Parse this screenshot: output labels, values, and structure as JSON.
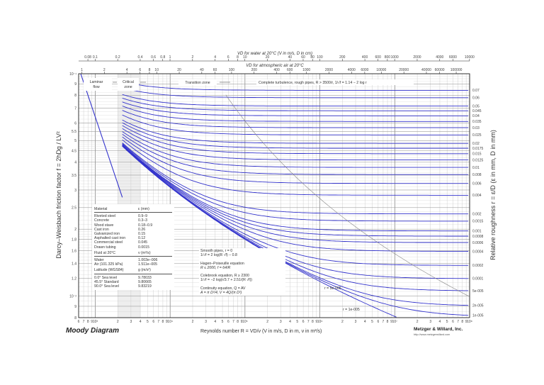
{
  "chart_data": {
    "type": "line",
    "title": "Moody Diagram",
    "xlabel": "Reynolds number R = VD/ν (V in m/s, D in m, ν in m²/s)",
    "ylabel": "Darcy-Weisbach friction factor f = 2hDg / LV²",
    "y2label": "Relative roughness r = ε/D (ε in mm, D in mm)",
    "x_scale": "log",
    "y_scale": "log",
    "xlim": [
      600,
      100000000
    ],
    "ylim": [
      0.008,
      0.1
    ],
    "grid": true,
    "x_tick_labels": [
      "6",
      "7",
      "8",
      "9",
      "10³",
      "2",
      "3",
      "4",
      "5",
      "6",
      "7",
      "8",
      "9",
      "10⁴",
      "2",
      "3",
      "4",
      "5",
      "6",
      "7",
      "8",
      "9",
      "10⁵",
      "2",
      "3",
      "4",
      "5",
      "6",
      "7",
      "8",
      "9",
      "10⁶",
      "2",
      "3",
      "4",
      "5",
      "6",
      "7",
      "8",
      "9",
      "10⁷",
      "2",
      "3",
      "4",
      "5",
      "6",
      "7",
      "8",
      "9",
      "10⁸"
    ],
    "y_tick_labels": [
      "10⁻¹",
      "9",
      "8",
      "7",
      "6",
      "5.5",
      "5",
      "4.5",
      "4",
      "3.5",
      "3",
      "2.5",
      "2",
      "1.8",
      "1.6",
      "1.4",
      "1.2",
      "10⁻²",
      "9",
      "8"
    ],
    "y_tick_values": [
      0.1,
      0.09,
      0.08,
      0.07,
      0.06,
      0.055,
      0.05,
      0.045,
      0.04,
      0.035,
      0.03,
      0.025,
      0.02,
      0.018,
      0.016,
      0.014,
      0.012,
      0.01,
      0.009,
      0.008
    ],
    "relative_roughness": [
      0.07,
      0.06,
      0.05,
      0.045,
      0.04,
      0.035,
      0.03,
      0.025,
      0.02,
      0.0175,
      0.015,
      0.0125,
      0.01,
      0.008,
      0.006,
      0.004,
      0.002,
      0.0015,
      0.001,
      0.0008,
      0.0006,
      0.0004,
      0.0002,
      0.0001,
      5e-05,
      2e-05,
      1e-05
    ],
    "relative_roughness_labels": [
      "0.07",
      "0.06",
      "0.05",
      "0.045",
      "0.04",
      "0.035",
      "0.03",
      "0.025",
      "0.02",
      "0.0175",
      "0.015",
      "0.0125",
      "0.01",
      "0.008",
      "0.006",
      "0.004",
      "0.002",
      "0.0015",
      "0.001",
      "0.0008",
      "0.0006",
      "0.0004",
      "0.0002",
      "0.0001",
      "5e-005",
      "2e-005",
      "1e-005"
    ],
    "laminar_line": {
      "R": [
        640,
        2300
      ],
      "f": [
        0.1,
        0.0278
      ],
      "equation": "f = 64/R"
    },
    "smooth_pipe_label": "r = 0",
    "curve_labels": [
      "r = 5e-005",
      "r = 1e-005"
    ],
    "series_color": "#3333cc",
    "zones": [
      "Laminar flow",
      "Critical zone",
      "Transition zone",
      "Complete turbulence, rough pipes, R > 3500/r, 1/√f = 1.14 − 2 log r"
    ],
    "top_axis_water": {
      "title": "VD for water at 20°C (V in m/s, D in cm)",
      "ticks": [
        "0.08",
        "0.1",
        "0.2",
        "0.4",
        "0.6",
        "0.8",
        "1",
        "2",
        "4",
        "6",
        "8",
        "10",
        "20",
        "40",
        "60",
        "80",
        "100",
        "200",
        "400",
        "600",
        "800",
        "1000",
        "2000",
        "4000",
        "6000",
        "10000"
      ]
    },
    "top_axis_air": {
      "title": "VD for atmospheric air at 20°C",
      "ticks": [
        "1",
        "2",
        "4",
        "6",
        "8",
        "10",
        "20",
        "40",
        "60",
        "100",
        "200",
        "400",
        "600",
        "1000",
        "2000",
        "4000",
        "6000",
        "10000",
        "20000",
        "40000",
        "60000",
        "100000"
      ]
    }
  },
  "header": {
    "water_axis_title": "VD for water at 20°C (V in m/s, D in cm)",
    "air_axis_title": "VD for atmospheric air at 20°C"
  },
  "zones": {
    "laminar_line1": "Laminar",
    "laminar_line2": "flow",
    "critical_line1": "Critical",
    "critical_line2": "zone",
    "transition": "Transition zone",
    "complete": "Complete turbulence, rough pipes, R > 3500/r,  1/√f = 1.14 − 2 log r"
  },
  "roughness_table": {
    "header_material": "Material",
    "header_eps": "ε (mm)",
    "rows": [
      {
        "material": "Riveted steel",
        "eps": "0.9–9"
      },
      {
        "material": "Concrete",
        "eps": "0.3–3"
      },
      {
        "material": "Wood stave",
        "eps": "0.18–0.9"
      },
      {
        "material": "Cast iron",
        "eps": "0.26"
      },
      {
        "material": "Galvanized iron",
        "eps": "0.15"
      },
      {
        "material": "Asphalted cast iron",
        "eps": "0.12"
      },
      {
        "material": "Commercial steel",
        "eps": "0.045"
      },
      {
        "material": "Drawn tubing",
        "eps": "0.0015"
      }
    ],
    "fluid_header": "Fluid at 20°C",
    "nu_header": "ν (m²/s)",
    "fluids": [
      {
        "name": "Water",
        "nu": "1.003e–006"
      },
      {
        "name": "Air (101.325 kPa)",
        "nu": "1.511e–005"
      }
    ],
    "lat_header": "Latitude (WGS84)",
    "g_header": "g (m/s²)",
    "latitudes": [
      {
        "lat": "0.0°",
        "desc": "Sea level",
        "g": "9.78033"
      },
      {
        "lat": "45.5°",
        "desc": "Standard",
        "g": "9.80665"
      },
      {
        "lat": "90.0°",
        "desc": "Sea level",
        "g": "9.83219"
      }
    ]
  },
  "equations": {
    "smooth1": "Smooth pipes, r = 0",
    "smooth2": "1/√f = 2 log(R √f) − 0.8",
    "hagen1": "Hagen–Poiseuille equation",
    "hagen2": "R ≤ 2000,  f = 64/R",
    "colebrook1": "Colebrook equation, R ≥ 2300",
    "colebrook2": "1/√f = −2 log(r/3.7 + 2.51/(R √f))",
    "continuity1": "Continuity equation, Q = AV",
    "continuity2": "A = π D²/4,  V = 4Q/(π D²)"
  },
  "footer": {
    "title": "Moody Diagram",
    "reynolds": "Reynolds number  R = VD/ν  (V in m/s, D in m, ν in m²/s)",
    "publisher": "Metzger & Willard, Inc.",
    "url": "http://www.metzgerwillard.com"
  },
  "axes": {
    "y_left": "Darcy–Weisbach friction factor  f = 2hDg / LV²",
    "y_right": "Relative roughness  r = ε/D  (ε in mm, D in mm)"
  }
}
